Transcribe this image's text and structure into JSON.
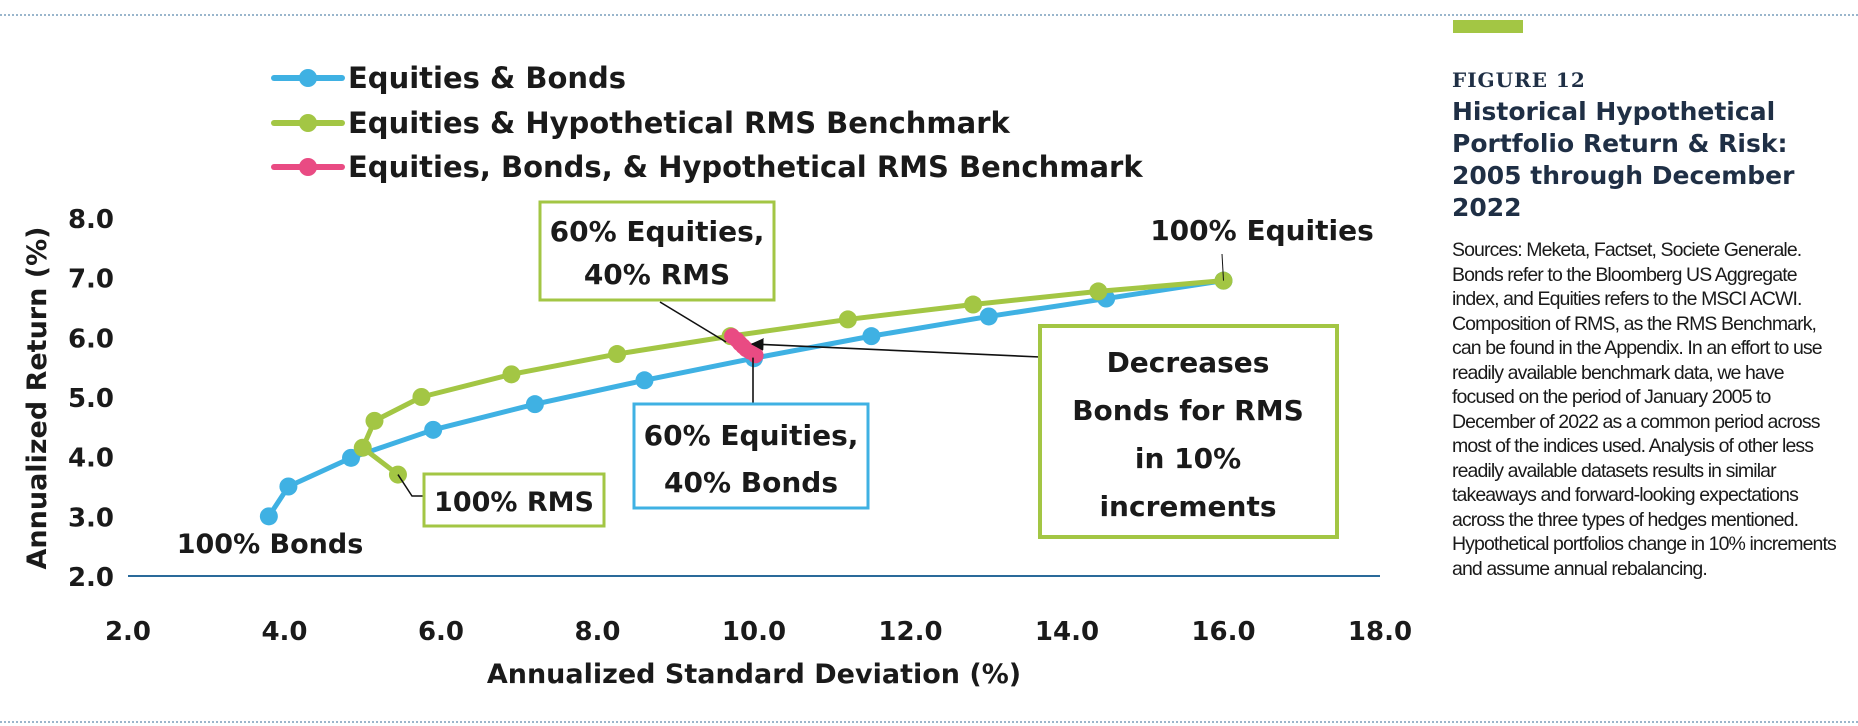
{
  "figure": {
    "label": "FIGURE 12",
    "title": "Historical Hypothetical Portfolio Return & Risk: 2005 through December 2022",
    "sources": "Sources: Meketa, Factset, Societe Generale. Bonds refer to the Bloomberg US Aggregate index, and Equities refers to the MSCI ACWI. Composition of RMS, as the RMS Benchmark, can be found in the Appendix. In an effort to use readily available benchmark data, we have focused on the period of January 2005 to December of 2022 as a common period across most of the indices used. Analysis of other less readily available datasets results in similar takeaways and forward-looking expectations across the three types of hedges mentioned. Hypothetical portfolios change in 10% increments and assume annual rebalancing."
  },
  "colors": {
    "series_blue": "#3fb1e3",
    "series_green": "#a3c644",
    "series_pink": "#e94b83",
    "axis": "#2a6a9a",
    "text": "#1a1a1a",
    "heading": "#1f2f45"
  },
  "chart_data": {
    "type": "line",
    "xlabel": "Annualized Standard Deviation (%)",
    "ylabel": "Annualized Return (%)",
    "xlim": [
      2.0,
      18.0
    ],
    "ylim": [
      2.0,
      8.0
    ],
    "xticks": [
      "2.0",
      "4.0",
      "6.0",
      "8.0",
      "10.0",
      "12.0",
      "14.0",
      "16.0",
      "18.0"
    ],
    "yticks": [
      "2.0",
      "3.0",
      "4.0",
      "5.0",
      "6.0",
      "7.0",
      "8.0"
    ],
    "legend_position": "top-left",
    "series": [
      {
        "name": "Equities & Bonds",
        "color": "#3fb1e3",
        "points": [
          [
            3.8,
            3.0
          ],
          [
            4.05,
            3.5
          ],
          [
            4.85,
            3.98
          ],
          [
            5.9,
            4.45
          ],
          [
            7.2,
            4.88
          ],
          [
            8.6,
            5.28
          ],
          [
            10.0,
            5.65
          ],
          [
            11.5,
            6.02
          ],
          [
            13.0,
            6.35
          ],
          [
            14.5,
            6.65
          ],
          [
            16.0,
            6.95
          ]
        ]
      },
      {
        "name": "Equities & Hypothetical RMS Benchmark",
        "color": "#a3c644",
        "points": [
          [
            5.45,
            3.7
          ],
          [
            5.0,
            4.15
          ],
          [
            5.15,
            4.6
          ],
          [
            5.75,
            5.0
          ],
          [
            6.9,
            5.38
          ],
          [
            8.25,
            5.72
          ],
          [
            9.7,
            6.02
          ],
          [
            11.2,
            6.3
          ],
          [
            12.8,
            6.55
          ],
          [
            14.4,
            6.77
          ],
          [
            16.0,
            6.95
          ]
        ]
      },
      {
        "name": "Equities, Bonds, & Hypothetical RMS Benchmark",
        "color": "#e94b83",
        "points": [
          [
            9.72,
            6.02
          ],
          [
            9.78,
            5.96
          ],
          [
            9.82,
            5.9
          ],
          [
            9.86,
            5.85
          ],
          [
            9.9,
            5.8
          ],
          [
            9.95,
            5.76
          ],
          [
            10.02,
            5.7
          ]
        ]
      }
    ],
    "annotations": [
      {
        "id": "bonds100",
        "text": "100% Bonds"
      },
      {
        "id": "equities100",
        "text": "100% Equities"
      },
      {
        "id": "rms100",
        "text": "100% RMS"
      },
      {
        "id": "eq60rms40",
        "text": [
          "60% Equities,",
          "40% RMS"
        ]
      },
      {
        "id": "eq60bonds40",
        "text": [
          "60% Equities,",
          "40% Bonds"
        ]
      },
      {
        "id": "decreases",
        "text": [
          "Decreases",
          "Bonds for RMS",
          "in 10%",
          "increments"
        ]
      }
    ]
  }
}
